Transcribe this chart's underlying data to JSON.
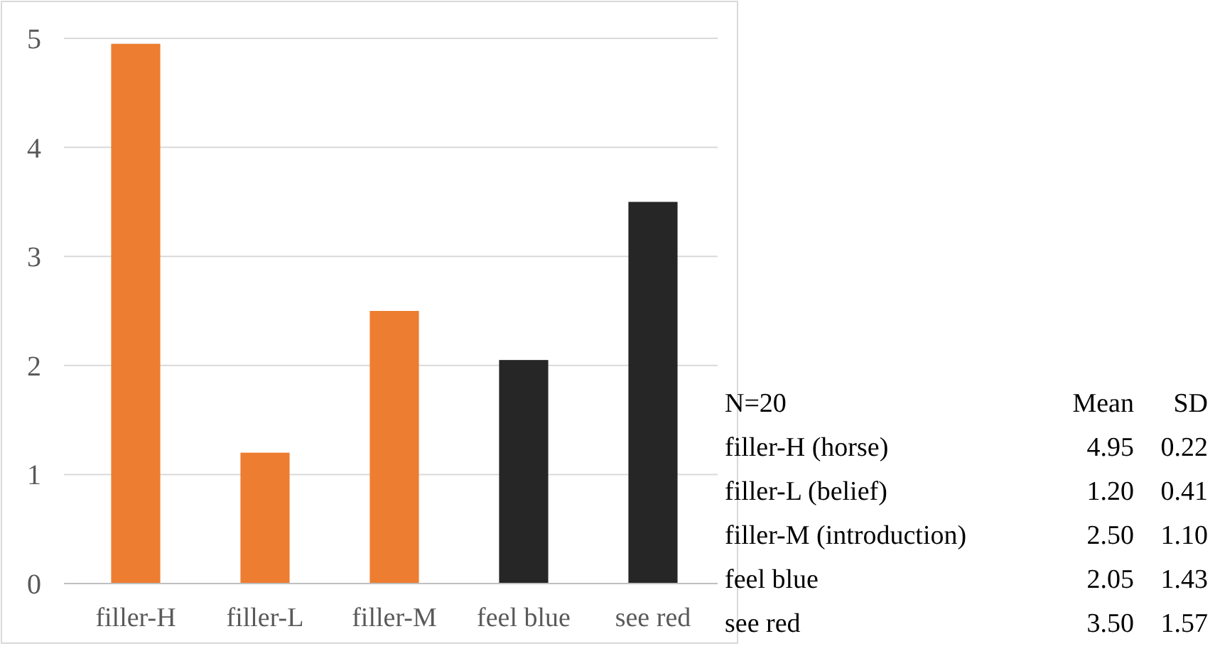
{
  "chart_data": [
    {
      "type": "bar",
      "categories": [
        "filler-H",
        "filler-L",
        "filler-M",
        "feel blue",
        "see red"
      ],
      "values": [
        4.95,
        1.2,
        2.5,
        2.05,
        3.5
      ],
      "colors": [
        "#ed7d31",
        "#ed7d31",
        "#ed7d31",
        "#262626",
        "#262626"
      ],
      "ylim": [
        0,
        5
      ],
      "yticks": [
        0,
        1,
        2,
        3,
        4,
        5
      ],
      "grid": "y"
    },
    {
      "type": "other",
      "annotations": [
        "N=20",
        "Mean",
        "SD",
        "filler-H (horse)",
        "4.95",
        "0.22",
        "filler-L (belief)",
        "1.20",
        "0.41",
        "filler-M (introduction)",
        "2.50",
        "1.10",
        "feel blue",
        "2.05",
        "1.43",
        "see red",
        "3.50",
        "1.57"
      ]
    }
  ]
}
